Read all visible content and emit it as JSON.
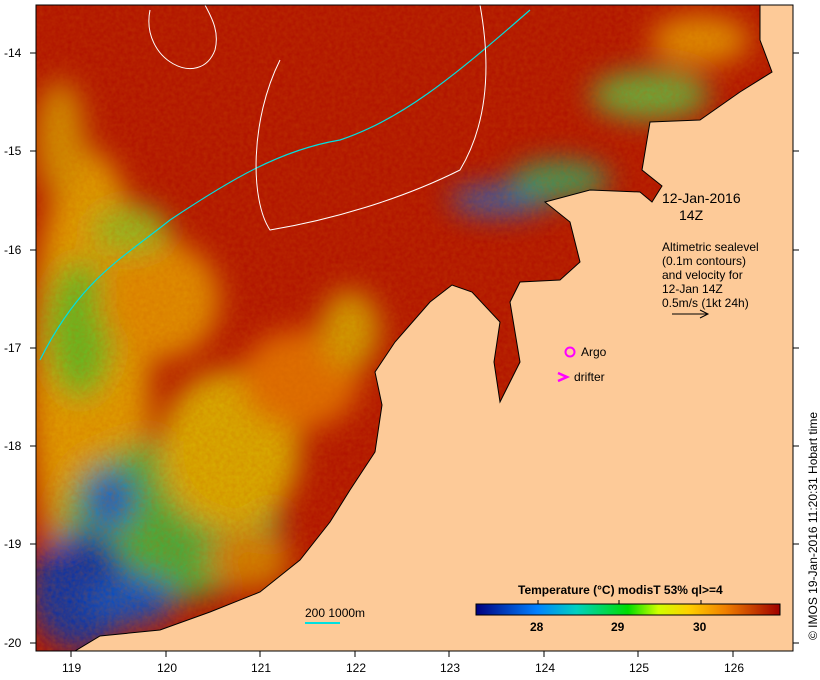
{
  "map": {
    "date_label": "12-Jan-2016",
    "time_label": "14Z",
    "info_lines": [
      "Altimetric sealevel",
      "(0.1m contours)",
      "and velocity for",
      "12-Jan 14Z",
      "0.5m/s (1kt 24h)"
    ],
    "argo_label": "Argo",
    "drifter_label": "drifter",
    "scale_label": "200  1000m",
    "credit": "© IMOS 19-Jan-2016 11:20:31 Hobart time",
    "lat_ticks": [
      "-14",
      "-15",
      "-16",
      "-17",
      "-18",
      "-19",
      "-20"
    ],
    "lon_ticks": [
      "119",
      "120",
      "121",
      "122",
      "123",
      "124",
      "125",
      "126"
    ]
  },
  "legend": {
    "title": "Temperature (°C) modisT 53% ql>=4",
    "ticks": [
      "28",
      "29",
      "30"
    ],
    "colors": [
      "#00007f",
      "#0080ff",
      "#00c0c0",
      "#00dd00",
      "#ffff00",
      "#ff9900",
      "#a00000"
    ]
  },
  "colors": {
    "land": "#fdca98",
    "argo": "#ff00ff",
    "contour": "#00e0e0"
  }
}
